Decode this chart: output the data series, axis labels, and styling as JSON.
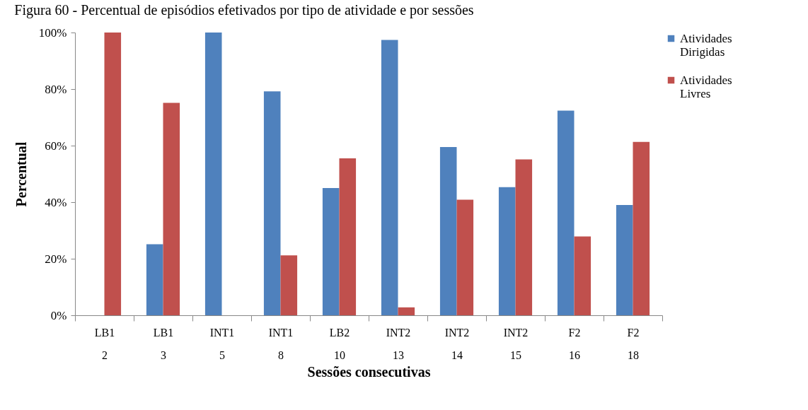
{
  "chart_data": {
    "type": "bar",
    "title": "Figura 60 - Percentual de episódios efetivados por tipo de atividade e por sessões",
    "xlabel": "Sessões consecutivas",
    "ylabel": "Percentual",
    "categories": [
      "LB1\n2",
      "LB1\n3",
      "INT1\n5",
      "INT1\n8",
      "LB2\n10",
      "INT2\n13",
      "INT2\n14",
      "INT2\n15",
      "F2\n16",
      "F2\n18"
    ],
    "series": [
      {
        "name": "Atividades Dirigidas",
        "color": "#4f81bd",
        "values": [
          0,
          25.1,
          100,
          79.2,
          45,
          97.4,
          59.5,
          45.3,
          72.4,
          39
        ]
      },
      {
        "name": "Atividades Livres",
        "color": "#c0504d",
        "values": [
          100,
          75.1,
          0,
          21.2,
          55.5,
          2.8,
          40.9,
          55.1,
          27.9,
          61.3
        ]
      }
    ],
    "ylim": [
      0,
      100
    ],
    "yticks": [
      {
        "value": 0,
        "label": "0%"
      },
      {
        "value": 20,
        "label": "20%"
      },
      {
        "value": 40,
        "label": "40%"
      },
      {
        "value": 60,
        "label": "60%"
      },
      {
        "value": 80,
        "label": "80%"
      },
      {
        "value": 100,
        "label": "100%"
      }
    ],
    "grid": false,
    "legend": "right"
  }
}
